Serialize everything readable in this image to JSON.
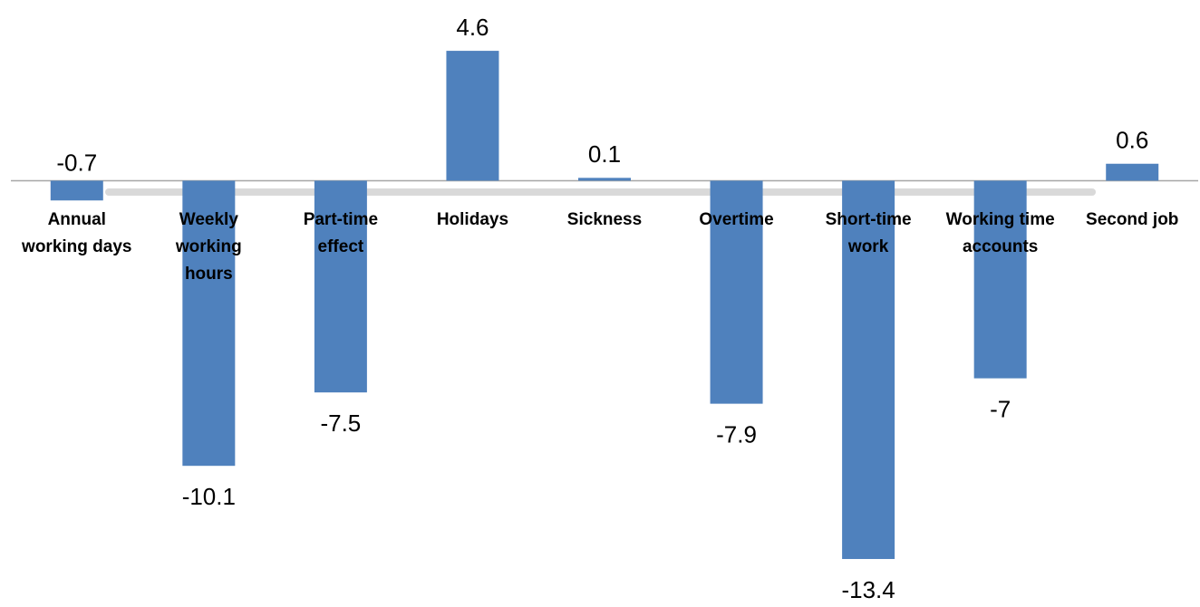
{
  "chart_data": {
    "type": "bar",
    "categories": [
      "Annual working days",
      "Weekly working hours",
      "Part-time effect",
      "Holidays",
      "Sickness",
      "Overtime",
      "Short-time work",
      "Working time accounts",
      "Second job"
    ],
    "values": [
      -0.7,
      -10.1,
      -7.5,
      4.6,
      0.1,
      -7.9,
      -13.4,
      -7,
      0.6
    ],
    "color": "#4f81bd",
    "ylim": [
      -15.1,
      6.4
    ]
  }
}
